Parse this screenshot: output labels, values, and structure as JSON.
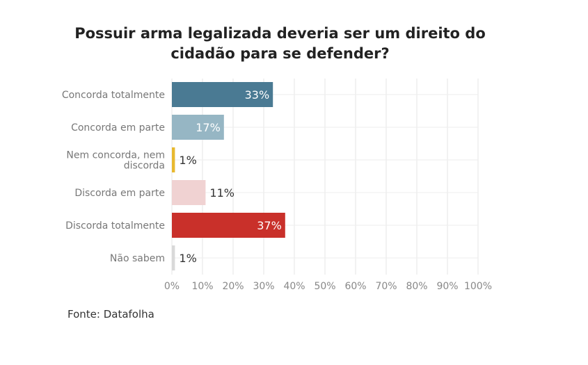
{
  "chart_data": {
    "type": "bar",
    "orientation": "horizontal",
    "title": "Possuir arma legalizada deveria ser um direito do cidadão para se defender?",
    "title_lines": [
      "Possuir arma legalizada deveria ser um direito do",
      "cidadão para se defender?"
    ],
    "categories": [
      [
        "Concorda totalmente"
      ],
      [
        "Concorda em parte"
      ],
      [
        "Nem concorda, nem",
        "discorda"
      ],
      [
        "Discorda em parte"
      ],
      [
        "Discorda totalmente"
      ],
      [
        "Não sabem"
      ]
    ],
    "values": [
      33,
      17,
      1,
      11,
      37,
      1
    ],
    "labels": [
      "33%",
      "17%",
      "1%",
      "11%",
      "37%",
      "1%"
    ],
    "colors": [
      "#4a7a93",
      "#96b6c4",
      "#e8b92f",
      "#f0d2d2",
      "#c9302a",
      "#d9d9d9"
    ],
    "label_colors": [
      "#ffffff",
      "#ffffff",
      "#333333",
      "#333333",
      "#ffffff",
      "#333333"
    ],
    "xlim": [
      0,
      100
    ],
    "xticks": [
      0,
      10,
      20,
      30,
      40,
      50,
      60,
      70,
      80,
      90,
      100
    ],
    "xtick_labels": [
      "0%",
      "10%",
      "20%",
      "30%",
      "40%",
      "50%",
      "60%",
      "70%",
      "80%",
      "90%",
      "100%"
    ],
    "grid": true,
    "xlabel": "",
    "ylabel": ""
  },
  "source": "Fonte: Datafolha"
}
